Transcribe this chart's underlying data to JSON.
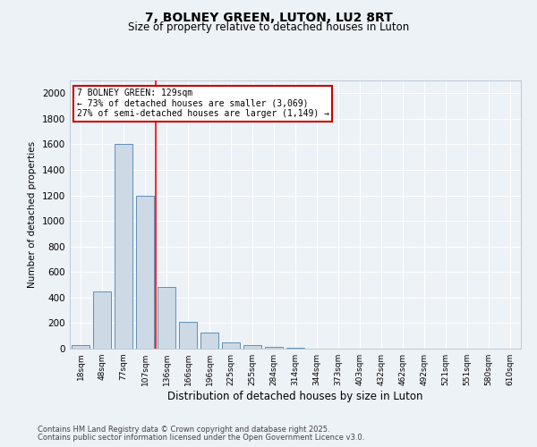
{
  "title1": "7, BOLNEY GREEN, LUTON, LU2 8RT",
  "title2": "Size of property relative to detached houses in Luton",
  "xlabel": "Distribution of detached houses by size in Luton",
  "ylabel": "Number of detached properties",
  "categories": [
    "18sqm",
    "48sqm",
    "77sqm",
    "107sqm",
    "136sqm",
    "166sqm",
    "196sqm",
    "225sqm",
    "255sqm",
    "284sqm",
    "314sqm",
    "344sqm",
    "373sqm",
    "403sqm",
    "432sqm",
    "462sqm",
    "492sqm",
    "521sqm",
    "551sqm",
    "580sqm",
    "610sqm"
  ],
  "values": [
    30,
    450,
    1600,
    1200,
    480,
    210,
    125,
    50,
    25,
    15,
    8,
    3,
    0,
    0,
    0,
    0,
    0,
    0,
    0,
    0,
    0
  ],
  "bar_color": "#cdd9e5",
  "bar_edge_color": "#6090b8",
  "red_line_x": 3.5,
  "annotation_line1": "7 BOLNEY GREEN: 129sqm",
  "annotation_line2": "← 73% of detached houses are smaller (3,069)",
  "annotation_line3": "27% of semi-detached houses are larger (1,149) →",
  "annotation_box_facecolor": "#ffffff",
  "annotation_box_edgecolor": "#cc0000",
  "ylim": [
    0,
    2100
  ],
  "yticks": [
    0,
    200,
    400,
    600,
    800,
    1000,
    1200,
    1400,
    1600,
    1800,
    2000
  ],
  "background_color": "#edf2f7",
  "grid_color": "#ffffff",
  "footer1": "Contains HM Land Registry data © Crown copyright and database right 2025.",
  "footer2": "Contains public sector information licensed under the Open Government Licence v3.0."
}
